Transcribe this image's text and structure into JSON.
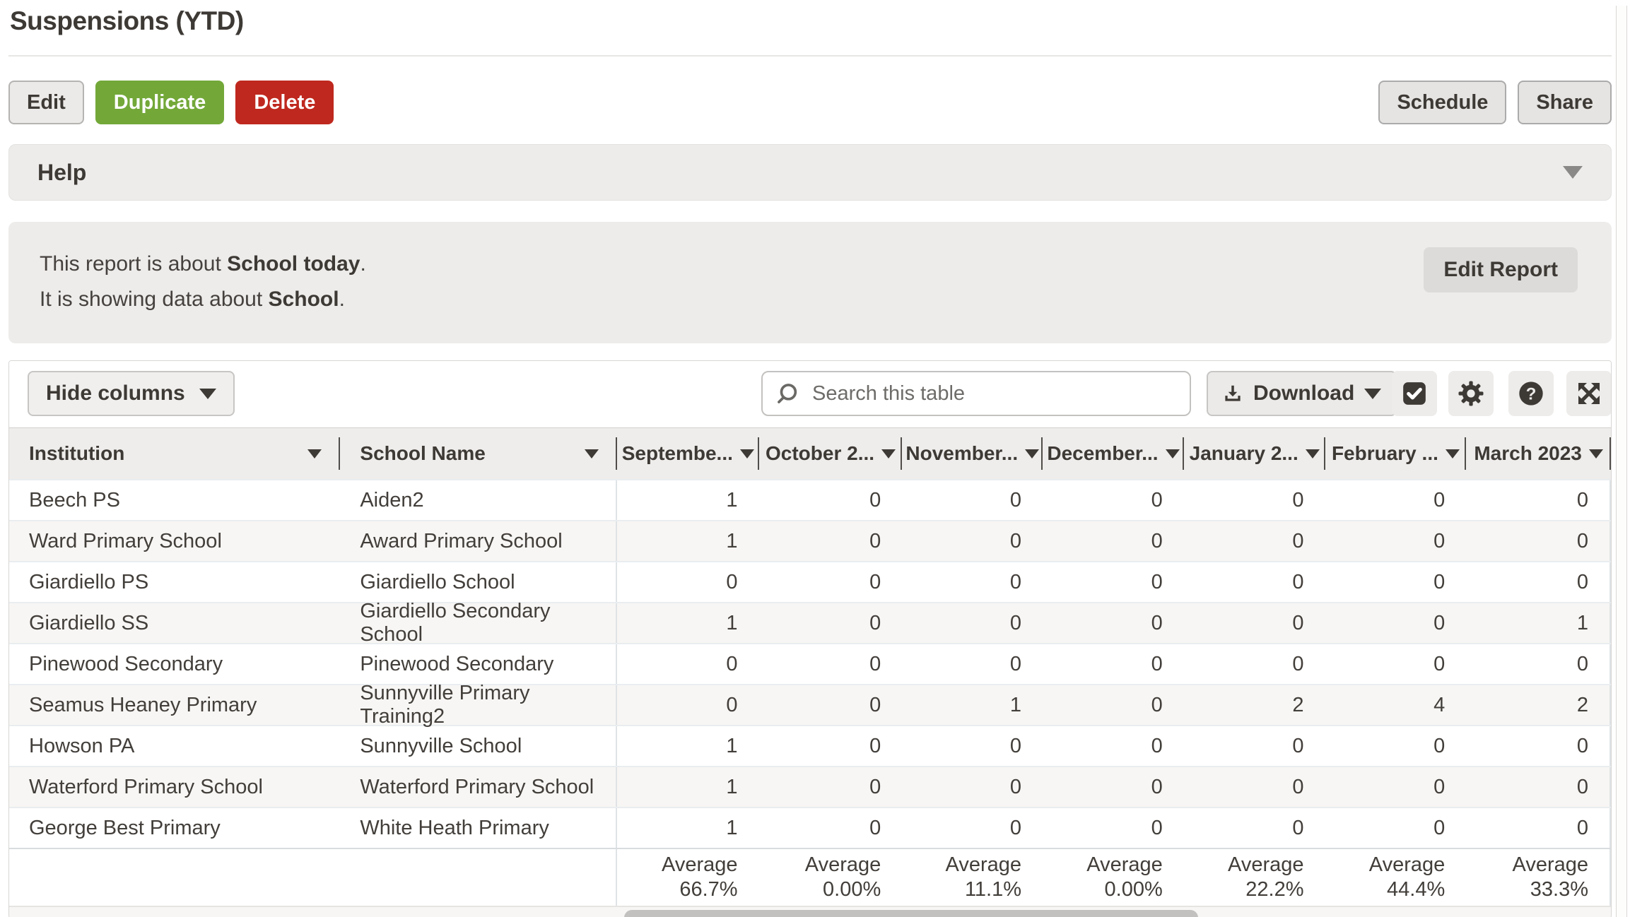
{
  "page": {
    "title": "Suspensions (YTD)"
  },
  "actions": {
    "edit": "Edit",
    "duplicate": "Duplicate",
    "delete": "Delete",
    "schedule": "Schedule",
    "share": "Share"
  },
  "help": {
    "label": "Help"
  },
  "report_info": {
    "line1_prefix": "This report is about ",
    "line1_bold": "School today",
    "line1_suffix": ".",
    "line2_prefix": "It is showing data about ",
    "line2_bold": "School",
    "line2_suffix": ".",
    "edit_report": "Edit Report"
  },
  "toolbar": {
    "hide_columns": "Hide columns",
    "search_placeholder": "Search this table",
    "download": "Download"
  },
  "icons": {
    "search": "magnifier-icon",
    "download": "download-tray-icon",
    "tasks": "check-square-icon",
    "settings": "gear-icon",
    "help": "question-circle-icon",
    "expand": "expand-arrows-icon",
    "question_glyph": "?"
  },
  "table": {
    "columns": [
      "Institution",
      "School Name",
      "Septembe...",
      "October 2...",
      "November...",
      "December...",
      "January 2...",
      "February ...",
      "March 2023"
    ],
    "rows": [
      {
        "institution": "Beech PS",
        "school_name": "Aiden2",
        "values": [
          1,
          0,
          0,
          0,
          0,
          0,
          0
        ]
      },
      {
        "institution": "Ward Primary School",
        "school_name": "Award Primary School",
        "values": [
          1,
          0,
          0,
          0,
          0,
          0,
          0
        ]
      },
      {
        "institution": "Giardiello PS",
        "school_name": "Giardiello School",
        "values": [
          0,
          0,
          0,
          0,
          0,
          0,
          0
        ]
      },
      {
        "institution": "Giardiello SS",
        "school_name": "Giardiello Secondary School",
        "values": [
          1,
          0,
          0,
          0,
          0,
          0,
          1
        ]
      },
      {
        "institution": "Pinewood Secondary",
        "school_name": "Pinewood Secondary",
        "values": [
          0,
          0,
          0,
          0,
          0,
          0,
          0
        ]
      },
      {
        "institution": "Seamus Heaney Primary",
        "school_name": "Sunnyville Primary Training2",
        "values": [
          0,
          0,
          1,
          0,
          2,
          4,
          2
        ]
      },
      {
        "institution": "Howson PA",
        "school_name": "Sunnyville School",
        "values": [
          1,
          0,
          0,
          0,
          0,
          0,
          0
        ]
      },
      {
        "institution": "Waterford Primary School",
        "school_name": "Waterford Primary School",
        "values": [
          1,
          0,
          0,
          0,
          0,
          0,
          0
        ]
      },
      {
        "institution": "George Best Primary",
        "school_name": "White Heath Primary",
        "values": [
          1,
          0,
          0,
          0,
          0,
          0,
          0
        ]
      }
    ],
    "average_label": "Average",
    "averages": [
      "66.7%",
      "0.00%",
      "11.1%",
      "0.00%",
      "22.2%",
      "44.4%",
      "33.3%"
    ]
  },
  "colors": {
    "accent_green": "#73a839",
    "accent_red": "#bf281e",
    "panel_gray": "#edecea",
    "text_dark": "#3d3935",
    "header_bg": "#eeedeb",
    "row_stripe": "#f7f6f4"
  }
}
